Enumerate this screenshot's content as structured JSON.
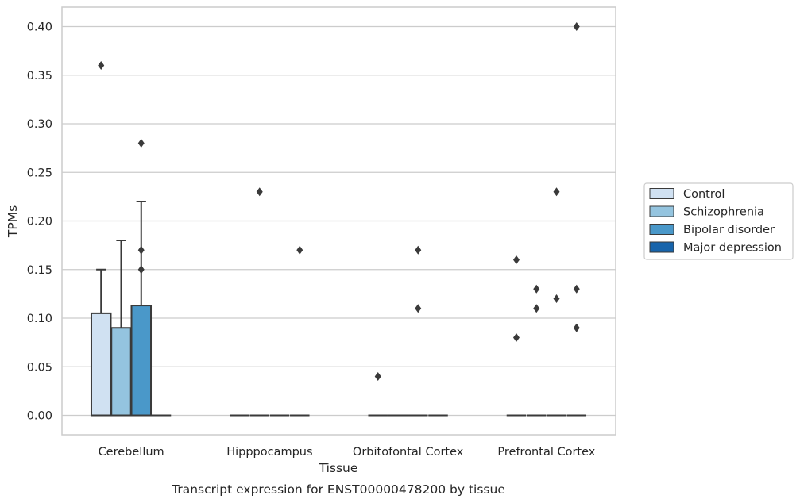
{
  "chart_data": {
    "type": "box",
    "title": "",
    "caption": "Transcript expression for ENST00000478200 by tissue",
    "xlabel": "Tissue",
    "ylabel": "TPMs",
    "ylim": [
      -0.02,
      0.42
    ],
    "yticks": [
      "0.00",
      "0.05",
      "0.10",
      "0.15",
      "0.20",
      "0.25",
      "0.30",
      "0.35",
      "0.40"
    ],
    "grid": "horizontal",
    "legend_position": "right",
    "categories": [
      "Cerebellum",
      "Hipppocampus",
      "Orbitofontal Cortex",
      "Prefrontal Cortex"
    ],
    "series": [
      {
        "name": "Control",
        "color": "#d0e1f2",
        "boxes": [
          {
            "q1": 0.0,
            "median": 0.0,
            "q3": 0.105,
            "whisker_low": 0.0,
            "whisker_high": 0.15,
            "outliers": [
              0.36
            ]
          },
          {
            "q1": 0.0,
            "median": 0.0,
            "q3": 0.0,
            "whisker_low": 0.0,
            "whisker_high": 0.0,
            "outliers": []
          },
          {
            "q1": 0.0,
            "median": 0.0,
            "q3": 0.0,
            "whisker_low": 0.0,
            "whisker_high": 0.0,
            "outliers": [
              0.04
            ]
          },
          {
            "q1": 0.0,
            "median": 0.0,
            "q3": 0.0,
            "whisker_low": 0.0,
            "whisker_high": 0.0,
            "outliers": [
              0.16,
              0.08
            ]
          }
        ]
      },
      {
        "name": "Schizophrenia",
        "color": "#94c4df",
        "boxes": [
          {
            "q1": 0.0,
            "median": 0.0,
            "q3": 0.09,
            "whisker_low": 0.0,
            "whisker_high": 0.18,
            "outliers": []
          },
          {
            "q1": 0.0,
            "median": 0.0,
            "q3": 0.0,
            "whisker_low": 0.0,
            "whisker_high": 0.0,
            "outliers": [
              0.23
            ]
          },
          {
            "q1": 0.0,
            "median": 0.0,
            "q3": 0.0,
            "whisker_low": 0.0,
            "whisker_high": 0.0,
            "outliers": []
          },
          {
            "q1": 0.0,
            "median": 0.0,
            "q3": 0.0,
            "whisker_low": 0.0,
            "whisker_high": 0.0,
            "outliers": [
              0.13,
              0.11
            ]
          }
        ]
      },
      {
        "name": "Bipolar disorder",
        "color": "#4a98c9",
        "boxes": [
          {
            "q1": 0.0,
            "median": 0.0,
            "q3": 0.113,
            "whisker_low": 0.0,
            "whisker_high": 0.22,
            "outliers": [
              0.28,
              0.17,
              0.15
            ]
          },
          {
            "q1": 0.0,
            "median": 0.0,
            "q3": 0.0,
            "whisker_low": 0.0,
            "whisker_high": 0.0,
            "outliers": []
          },
          {
            "q1": 0.0,
            "median": 0.0,
            "q3": 0.0,
            "whisker_low": 0.0,
            "whisker_high": 0.0,
            "outliers": [
              0.17,
              0.11
            ]
          },
          {
            "q1": 0.0,
            "median": 0.0,
            "q3": 0.0,
            "whisker_low": 0.0,
            "whisker_high": 0.0,
            "outliers": [
              0.23,
              0.12
            ]
          }
        ]
      },
      {
        "name": "Major depression",
        "color": "#1764ab",
        "boxes": [
          {
            "q1": 0.0,
            "median": 0.0,
            "q3": 0.0,
            "whisker_low": 0.0,
            "whisker_high": 0.0,
            "outliers": []
          },
          {
            "q1": 0.0,
            "median": 0.0,
            "q3": 0.0,
            "whisker_low": 0.0,
            "whisker_high": 0.0,
            "outliers": [
              0.17
            ]
          },
          {
            "q1": 0.0,
            "median": 0.0,
            "q3": 0.0,
            "whisker_low": 0.0,
            "whisker_high": 0.0,
            "outliers": []
          },
          {
            "q1": 0.0,
            "median": 0.0,
            "q3": 0.0,
            "whisker_low": 0.0,
            "whisker_high": 0.0,
            "outliers": [
              0.4,
              0.13,
              0.09
            ]
          }
        ]
      }
    ],
    "colors": {
      "grid": "#cccccc",
      "frame": "#cccccc",
      "box_edge": "#3a3a3a",
      "outlier": "#3a3a3a",
      "legend_border": "#cccccc"
    }
  }
}
